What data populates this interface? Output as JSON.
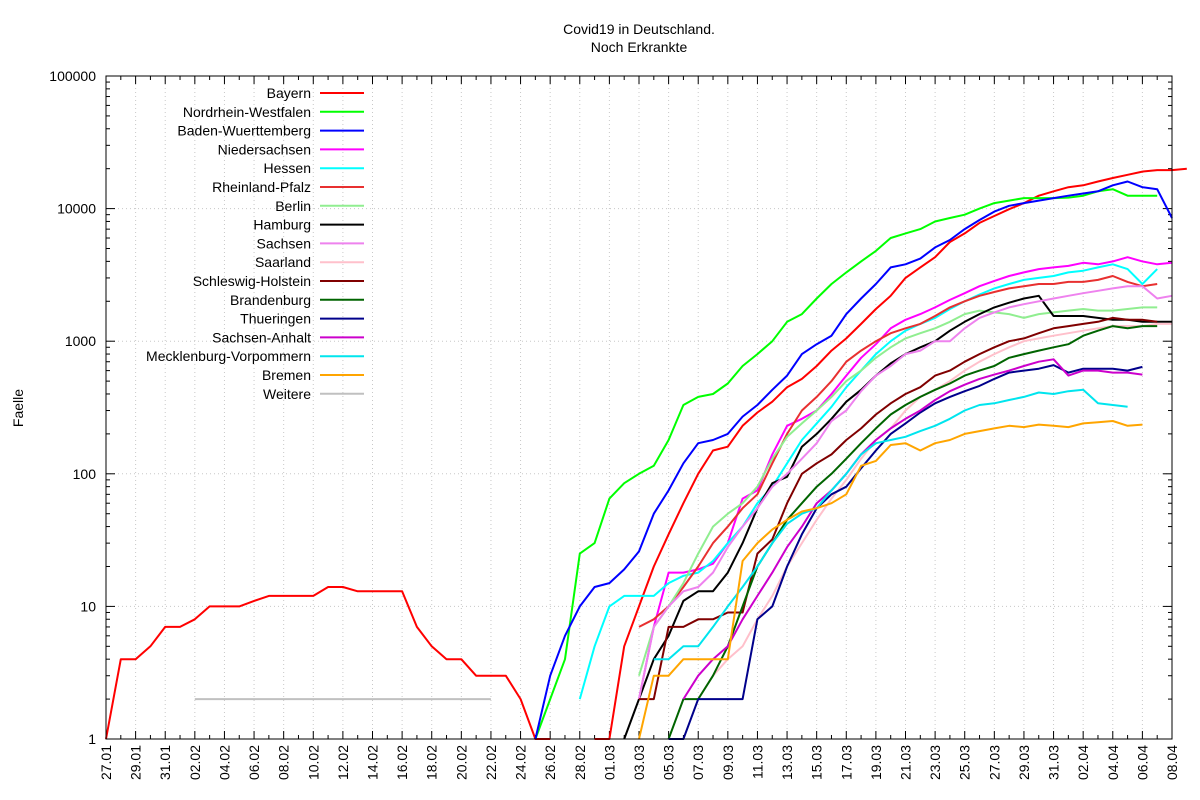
{
  "chart_data": {
    "type": "line",
    "title": "Covid19 in Deutschland.",
    "subtitle": "Noch Erkrankte",
    "xlabel": "",
    "ylabel": "Faelle",
    "y_scale": "log",
    "ylim": [
      1,
      100000
    ],
    "y_ticks": [
      1,
      10,
      100,
      1000,
      10000,
      100000
    ],
    "y_tick_labels": [
      "1",
      "10",
      "100",
      "1000",
      "10000",
      "100000"
    ],
    "x_range": [
      "27.01",
      "08.04"
    ],
    "x_tick_labels": [
      "27.01",
      "29.01",
      "31.01",
      "02.02",
      "04.02",
      "06.02",
      "08.02",
      "10.02",
      "12.02",
      "14.02",
      "16.02",
      "18.02",
      "20.02",
      "22.02",
      "24.02",
      "26.02",
      "28.02",
      "01.03",
      "03.03",
      "05.03",
      "07.03",
      "09.03",
      "11.03",
      "13.03",
      "15.03",
      "17.03",
      "19.03",
      "21.03",
      "23.03",
      "25.03",
      "27.03",
      "29.03",
      "31.03",
      "02.04",
      "04.04",
      "06.04",
      "08.04"
    ],
    "grid": true,
    "legend_position": "top-left",
    "series": [
      {
        "name": "Bayern",
        "color": "#ff0000",
        "start": "27.01",
        "values": [
          1,
          4,
          4,
          5,
          7,
          7,
          8,
          10,
          10,
          10,
          11,
          12,
          12,
          12,
          12,
          14,
          14,
          13,
          13,
          13,
          13,
          7,
          5,
          4,
          4,
          3,
          3,
          3,
          2,
          1,
          1,
          null,
          null,
          1,
          1,
          5,
          10,
          20,
          35,
          60,
          100,
          150,
          160,
          230,
          290,
          350,
          450,
          520,
          650,
          850,
          1050,
          1350,
          1750,
          2200,
          3000,
          3600,
          4300,
          5600,
          6500,
          7800,
          8800,
          9900,
          11000,
          12500,
          13500,
          14500,
          15000,
          16000,
          17000,
          18000,
          19000,
          19500,
          19500,
          20000
        ]
      },
      {
        "name": "Nordrhein-Westfalen",
        "color": "#00ff00",
        "start": "25.02",
        "values": [
          1,
          2,
          4,
          25,
          30,
          65,
          85,
          100,
          115,
          180,
          330,
          380,
          400,
          480,
          650,
          800,
          1000,
          1400,
          1600,
          2100,
          2700,
          3300,
          4000,
          4800,
          6000,
          6500,
          7000,
          8000,
          8500,
          9000,
          10000,
          11000,
          11500,
          12000,
          12000,
          12000,
          12100,
          12500,
          13500,
          14000,
          12500,
          12500,
          12500
        ]
      },
      {
        "name": "Baden-Wuerttemberg",
        "color": "#0000ff",
        "start": "25.02",
        "values": [
          1,
          3,
          6,
          10,
          14,
          15,
          19,
          26,
          50,
          75,
          120,
          170,
          180,
          200,
          270,
          330,
          430,
          550,
          800,
          950,
          1100,
          1600,
          2100,
          2700,
          3600,
          3800,
          4200,
          5100,
          5800,
          7000,
          8200,
          9500,
          10500,
          11000,
          11500,
          12000,
          12500,
          13000,
          13500,
          15000,
          16000,
          14500,
          14000,
          8500
        ]
      },
      {
        "name": "Niedersachsen",
        "color": "#ff00ff",
        "start": "03.03",
        "values": [
          2,
          7,
          18,
          18,
          19,
          21,
          30,
          65,
          75,
          140,
          230,
          260,
          300,
          400,
          550,
          750,
          950,
          1250,
          1450,
          1600,
          1800,
          2050,
          2300,
          2600,
          2850,
          3100,
          3300,
          3500,
          3600,
          3700,
          3900,
          3800,
          4000,
          4300,
          4000,
          3800,
          3900
        ]
      },
      {
        "name": "Hessen",
        "color": "#00ffff",
        "start": "28.02",
        "values": [
          2,
          5,
          10,
          12,
          12,
          12,
          15,
          17,
          18,
          22,
          30,
          40,
          60,
          80,
          120,
          180,
          240,
          320,
          450,
          600,
          800,
          1000,
          1200,
          1350,
          1500,
          1750,
          2000,
          2250,
          2500,
          2700,
          2900,
          3000,
          3100,
          3300,
          3400,
          3600,
          3800,
          3500,
          2700,
          3500
        ]
      },
      {
        "name": "Rheinland-Pfalz",
        "color": "#e83030",
        "start": "03.03",
        "values": [
          7,
          8,
          10,
          14,
          20,
          30,
          40,
          55,
          70,
          120,
          200,
          300,
          380,
          500,
          700,
          850,
          1000,
          1150,
          1250,
          1350,
          1550,
          1800,
          2000,
          2200,
          2350,
          2500,
          2600,
          2700,
          2700,
          2800,
          2800,
          2900,
          3100,
          2800,
          2600,
          2700
        ]
      },
      {
        "name": "Berlin",
        "color": "#90ee90",
        "start": "03.03",
        "values": [
          3,
          7,
          10,
          15,
          25,
          40,
          50,
          60,
          80,
          130,
          190,
          240,
          300,
          380,
          500,
          600,
          750,
          900,
          1050,
          1150,
          1250,
          1400,
          1600,
          1700,
          1650,
          1600,
          1500,
          1600,
          1650,
          1700,
          1750,
          1700,
          1700,
          1750,
          1800,
          1800
        ]
      },
      {
        "name": "Hamburg",
        "color": "#000000",
        "start": "02.03",
        "values": [
          1,
          2,
          4,
          6,
          11,
          13,
          13,
          18,
          30,
          55,
          85,
          95,
          160,
          200,
          260,
          350,
          430,
          550,
          680,
          800,
          900,
          1000,
          1200,
          1400,
          1600,
          1800,
          1950,
          2100,
          2200,
          1550,
          1550,
          1550,
          1500,
          1450,
          1450,
          1400,
          1400,
          1400
        ]
      },
      {
        "name": "Sachsen",
        "color": "#ee82ee",
        "start": "03.03",
        "values": [
          2,
          7,
          10,
          13,
          14,
          18,
          28,
          40,
          55,
          80,
          100,
          130,
          170,
          250,
          300,
          420,
          550,
          650,
          800,
          850,
          1000,
          1000,
          1250,
          1500,
          1650,
          1800,
          1900,
          2000,
          2100,
          2200,
          2300,
          2400,
          2500,
          2600,
          2600,
          2100,
          2200
        ]
      },
      {
        "name": "Saarland",
        "color": "#ffc0cb",
        "start": "07.03",
        "values": [
          2,
          3,
          4,
          5,
          8,
          12,
          20,
          30,
          45,
          65,
          90,
          130,
          180,
          220,
          300,
          380,
          430,
          500,
          600,
          700,
          800,
          900,
          1000,
          1050,
          1100,
          1150,
          1200,
          1250,
          1300,
          1300,
          1300,
          1350,
          1350
        ]
      },
      {
        "name": "Schleswig-Holstein",
        "color": "#800000",
        "start": "03.03",
        "values": [
          2,
          2,
          7,
          7,
          8,
          8,
          9,
          9,
          25,
          32,
          60,
          100,
          120,
          140,
          180,
          220,
          280,
          340,
          400,
          450,
          550,
          600,
          700,
          800,
          900,
          1000,
          1050,
          1150,
          1250,
          1300,
          1350,
          1400,
          1500,
          1450,
          1450,
          1400
        ]
      },
      {
        "name": "Brandenburg",
        "color": "#006400",
        "start": "05.03",
        "values": [
          1,
          2,
          2,
          3,
          5,
          10,
          20,
          30,
          45,
          60,
          80,
          100,
          130,
          170,
          220,
          280,
          330,
          380,
          430,
          480,
          550,
          600,
          650,
          750,
          800,
          850,
          900,
          950,
          1100,
          1200,
          1300,
          1250,
          1300,
          1300
        ]
      },
      {
        "name": "Thueringen",
        "color": "#00008b",
        "start": "05.03",
        "values": [
          1,
          1,
          2,
          2,
          2,
          2,
          8,
          10,
          20,
          35,
          55,
          70,
          80,
          110,
          150,
          200,
          240,
          290,
          340,
          380,
          420,
          460,
          520,
          580,
          600,
          620,
          660,
          580,
          620,
          620,
          620,
          600,
          640
        ]
      },
      {
        "name": "Sachsen-Anhalt",
        "color": "#cc00cc",
        "start": "06.03",
        "values": [
          2,
          3,
          4,
          5,
          8,
          12,
          18,
          28,
          40,
          60,
          75,
          100,
          140,
          180,
          220,
          260,
          300,
          360,
          420,
          470,
          520,
          560,
          600,
          650,
          700,
          730,
          550,
          600,
          600,
          580,
          580,
          560
        ]
      },
      {
        "name": "Mecklenburg-Vorpommern",
        "color": "#00e5ee",
        "start": "04.03",
        "values": [
          4,
          4,
          5,
          5,
          7,
          10,
          14,
          20,
          30,
          42,
          50,
          55,
          75,
          100,
          140,
          170,
          180,
          190,
          210,
          230,
          260,
          300,
          330,
          340,
          360,
          380,
          410,
          400,
          420,
          430,
          340,
          330,
          320
        ]
      },
      {
        "name": "Bremen",
        "color": "#ffa500",
        "start": "03.03",
        "values": [
          1,
          3,
          3,
          4,
          4,
          4,
          4,
          22,
          30,
          38,
          45,
          52,
          55,
          60,
          70,
          115,
          125,
          165,
          170,
          150,
          170,
          180,
          200,
          210,
          220,
          230,
          225,
          235,
          230,
          225,
          240,
          245,
          250,
          230,
          235
        ]
      },
      {
        "name": "Weitere",
        "color": "#c0c0c0",
        "start": "02.02",
        "values": [
          2,
          2,
          2,
          2,
          2,
          2,
          2,
          2,
          2,
          2,
          2,
          2,
          2,
          2,
          2,
          2,
          2,
          2,
          2,
          2,
          2
        ]
      }
    ]
  }
}
